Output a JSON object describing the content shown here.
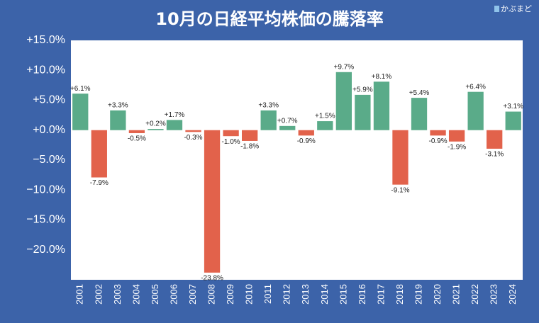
{
  "logo": "かぶまど",
  "chart_data": {
    "type": "bar",
    "title": "10月の日経平均株価の騰落率",
    "categories": [
      "2001",
      "2002",
      "2003",
      "2004",
      "2005",
      "2006",
      "2007",
      "2008",
      "2009",
      "2010",
      "2011",
      "2012",
      "2013",
      "2014",
      "2015",
      "2016",
      "2017",
      "2018",
      "2019",
      "2020",
      "2021",
      "2022",
      "2023",
      "2024"
    ],
    "values": [
      6.1,
      -7.9,
      3.3,
      -0.5,
      0.2,
      1.7,
      -0.3,
      -23.8,
      -1.0,
      -1.8,
      3.3,
      0.7,
      -0.9,
      1.5,
      9.7,
      5.9,
      8.1,
      -9.1,
      5.4,
      -0.9,
      -1.9,
      6.4,
      -3.1,
      3.1
    ],
    "value_labels": [
      "+6.1%",
      "-7.9%",
      "+3.3%",
      "-0.5%",
      "+0.2%",
      "+1.7%",
      "-0.3%",
      "-23.8%",
      "-1.0%",
      "-1.8%",
      "+3.3%",
      "+0.7%",
      "-0.9%",
      "+1.5%",
      "+9.7%",
      "+5.9%",
      "+8.1%",
      "-9.1%",
      "+5.4%",
      "-0.9%",
      "-1.9%",
      "+6.4%",
      "-3.1%",
      "+3.1%"
    ],
    "positive_color": "#5aab89",
    "negative_color": "#e2624b",
    "ylim": [
      -25,
      15
    ],
    "yticks": [
      {
        "value": 15,
        "label": "+15.0%"
      },
      {
        "value": 10,
        "label": "+10.0%"
      },
      {
        "value": 5,
        "label": "+5.0%"
      },
      {
        "value": 0,
        "label": "+0.0%"
      },
      {
        "value": -5,
        "label": "−5.0%"
      },
      {
        "value": -10,
        "label": "−10.0%"
      },
      {
        "value": -15,
        "label": "−15.0%"
      },
      {
        "value": -20,
        "label": "−20.0%"
      }
    ],
    "grid": false
  }
}
